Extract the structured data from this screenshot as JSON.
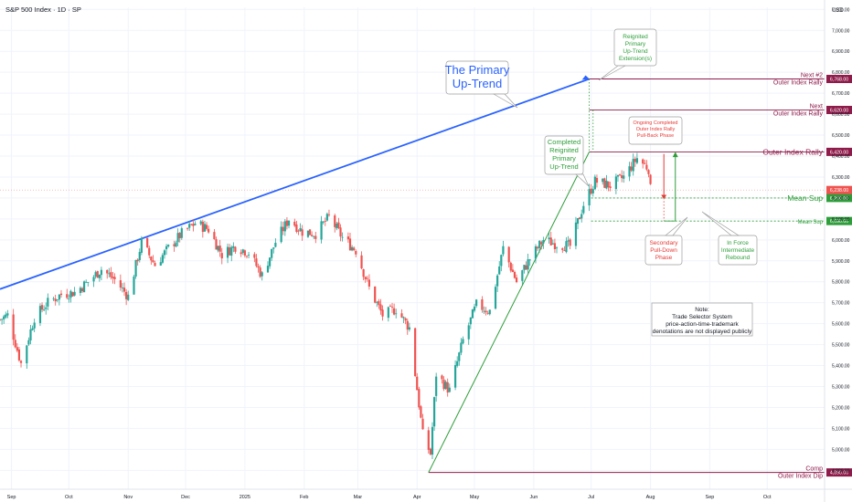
{
  "header": {
    "title": "S&P 500 Index · 1D · SP"
  },
  "axis": {
    "currency": "USD"
  },
  "colors": {
    "up": "#26a69a",
    "down": "#ef5350",
    "trend_blue": "#2962ff",
    "green": "#2e9e3a",
    "maroon": "#8e1b4a",
    "red_label": "#e53935",
    "grid": "#f0f3fa",
    "text": "#131722"
  },
  "chart_data": {
    "type": "candlestick",
    "x_range": [
      "2024-08-26",
      "2025-10-31"
    ],
    "ylim": [
      4810,
      7110
    ],
    "y_ticks": [
      4900,
      5000,
      5100,
      5200,
      5300,
      5400,
      5500,
      5600,
      5700,
      5800,
      5900,
      6000,
      6100,
      6200,
      6300,
      6400,
      6500,
      6600,
      6700,
      6800,
      6900,
      7000,
      7100
    ],
    "y_tick_labels": [
      "4,900.00",
      "5,000.00",
      "5,100.00",
      "5,200.00",
      "5,300.00",
      "5,400.00",
      "5,500.00",
      "5,600.00",
      "5,700.00",
      "5,800.00",
      "5,900.00",
      "6,000.00",
      "6,100.00",
      "6,200.00",
      "6,300.00",
      "6,400.00",
      "6,500.00",
      "6,600.00",
      "6,700.00",
      "6,800.00",
      "6,900.00",
      "7,000.00",
      "7,100.00"
    ],
    "x_ticks": [
      {
        "date": "2024-09-01",
        "label": "Sep"
      },
      {
        "date": "2024-10-01",
        "label": "Oct"
      },
      {
        "date": "2024-11-01",
        "label": "Nov"
      },
      {
        "date": "2024-12-01",
        "label": "Dec"
      },
      {
        "date": "2025-01-01",
        "label": "2025"
      },
      {
        "date": "2025-02-01",
        "label": "Feb"
      },
      {
        "date": "2025-03-01",
        "label": "Mar"
      },
      {
        "date": "2025-04-01",
        "label": "Apr"
      },
      {
        "date": "2025-05-01",
        "label": "May"
      },
      {
        "date": "2025-06-01",
        "label": "Jun"
      },
      {
        "date": "2025-07-01",
        "label": "Jul"
      },
      {
        "date": "2025-08-01",
        "label": "Aug"
      },
      {
        "date": "2025-09-01",
        "label": "Sep"
      },
      {
        "date": "2025-10-01",
        "label": "Oct"
      }
    ],
    "closes": [
      [
        "2024-08-26",
        5620
      ],
      [
        "2024-08-30",
        5640
      ],
      [
        "2024-09-06",
        5410
      ],
      [
        "2024-09-13",
        5630
      ],
      [
        "2024-09-20",
        5700
      ],
      [
        "2024-09-27",
        5740
      ],
      [
        "2024-10-04",
        5750
      ],
      [
        "2024-10-11",
        5800
      ],
      [
        "2024-10-18",
        5860
      ],
      [
        "2024-10-25",
        5810
      ],
      [
        "2024-11-01",
        5730
      ],
      [
        "2024-11-08",
        5990
      ],
      [
        "2024-11-15",
        5880
      ],
      [
        "2024-11-22",
        5960
      ],
      [
        "2024-11-29",
        6030
      ],
      [
        "2024-12-06",
        6080
      ],
      [
        "2024-12-13",
        6050
      ],
      [
        "2024-12-20",
        5930
      ],
      [
        "2024-12-27",
        5970
      ],
      [
        "2025-01-03",
        5940
      ],
      [
        "2025-01-10",
        5830
      ],
      [
        "2025-01-17",
        5990
      ],
      [
        "2025-01-24",
        6100
      ],
      [
        "2025-01-31",
        6040
      ],
      [
        "2025-02-07",
        6030
      ],
      [
        "2025-02-14",
        6110
      ],
      [
        "2025-02-21",
        6010
      ],
      [
        "2025-02-28",
        5950
      ],
      [
        "2025-03-07",
        5770
      ],
      [
        "2025-03-14",
        5640
      ],
      [
        "2025-03-21",
        5670
      ],
      [
        "2025-03-28",
        5580
      ],
      [
        "2025-04-04",
        5070
      ],
      [
        "2025-04-08",
        4980
      ],
      [
        "2025-04-11",
        5360
      ],
      [
        "2025-04-18",
        5280
      ],
      [
        "2025-04-25",
        5520
      ],
      [
        "2025-05-02",
        5690
      ],
      [
        "2025-05-09",
        5660
      ],
      [
        "2025-05-16",
        5960
      ],
      [
        "2025-05-23",
        5800
      ],
      [
        "2025-05-30",
        5910
      ],
      [
        "2025-06-06",
        6000
      ],
      [
        "2025-06-13",
        5980
      ],
      [
        "2025-06-20",
        5970
      ],
      [
        "2025-06-27",
        6170
      ],
      [
        "2025-07-03",
        6280
      ],
      [
        "2025-07-11",
        6260
      ],
      [
        "2025-07-18",
        6300
      ],
      [
        "2025-07-25",
        6390
      ],
      [
        "2025-07-31",
        6340
      ],
      [
        "2025-08-01",
        6240
      ]
    ],
    "levels": [
      {
        "name": "Next #2",
        "sub": "Outer Index Rally",
        "value": 6768,
        "tag": "6,768.00",
        "style": "solid",
        "color": "#8e1b4a"
      },
      {
        "name": "Next",
        "sub": "Outer Index Rally",
        "value": 6620,
        "tag": "6,620.00",
        "style": "solid",
        "color": "#8e1b4a"
      },
      {
        "name": "Outer Index Rally",
        "value": 6420,
        "tag": "6,420.00",
        "style": "solid",
        "color": "#8e1b4a"
      },
      {
        "name": "Mean Sup",
        "value": 6200,
        "tag": "6,200.00",
        "style": "dotted",
        "color": "#2e9e3a"
      },
      {
        "name": "Mean Sup",
        "value": 6090,
        "tag": "6,090.00",
        "style": "dotted",
        "color": "#2e9e3a"
      },
      {
        "name": "Comp",
        "sub": "Outer Index Dip",
        "value": 4890,
        "tag": "4,890.00",
        "style": "solid",
        "color": "#8e1b4a"
      }
    ],
    "last_price_tag": "6,238.00",
    "last_price": 6238,
    "annotations": {
      "primary_trend": "The Primary\nUp-Trend",
      "reignited_ext": "Reignited\nPrimary\nUp-Trend\nExtension(s)",
      "completed": "Completed\nReignited\nPrimary\nUp-Trend",
      "pullback": "Ongoing Completed\nOuter Index Rally\nPull-Back Phase",
      "secondary": "Secondary\nPull-Down\nPhase",
      "inforce": "In Force\nIntermediate\nRebound",
      "note": "Note:\nTrade Selector System\nprice-action-time-trademark\ndenotations are not displayed publicly"
    },
    "trendlines": [
      {
        "name": "primary-uptrend",
        "from": [
          "2024-08-26",
          5765
        ],
        "to": [
          "2025-06-30",
          6768
        ],
        "color": "#2962ff"
      },
      {
        "name": "reignited-uptrend",
        "from": [
          "2025-04-07",
          4890
        ],
        "to": [
          "2025-06-30",
          6420
        ],
        "color": "#2e9e3a"
      }
    ]
  }
}
